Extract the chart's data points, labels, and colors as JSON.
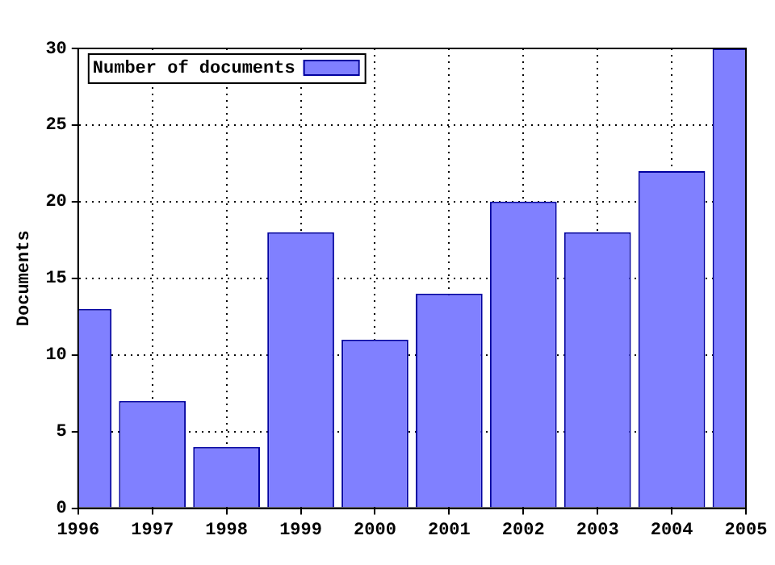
{
  "chart_data": {
    "type": "bar",
    "ylabel": "Documents",
    "x": [
      1996,
      1997,
      1998,
      1999,
      2000,
      2001,
      2002,
      2003,
      2004,
      2005
    ],
    "series": [
      {
        "name": "Number of documents",
        "color": "#8080ff",
        "values": [
          13,
          7,
          4,
          18,
          11,
          14,
          20,
          18,
          22,
          30
        ]
      }
    ],
    "xlim": [
      1996,
      2005
    ],
    "xticks": [
      1996,
      1997,
      1998,
      1999,
      2000,
      2001,
      2002,
      2003,
      2004,
      2005
    ],
    "ylim": [
      0,
      30
    ],
    "yticks": [
      0,
      5,
      10,
      15,
      20,
      25,
      30
    ],
    "grid": true,
    "legend": "top left"
  }
}
